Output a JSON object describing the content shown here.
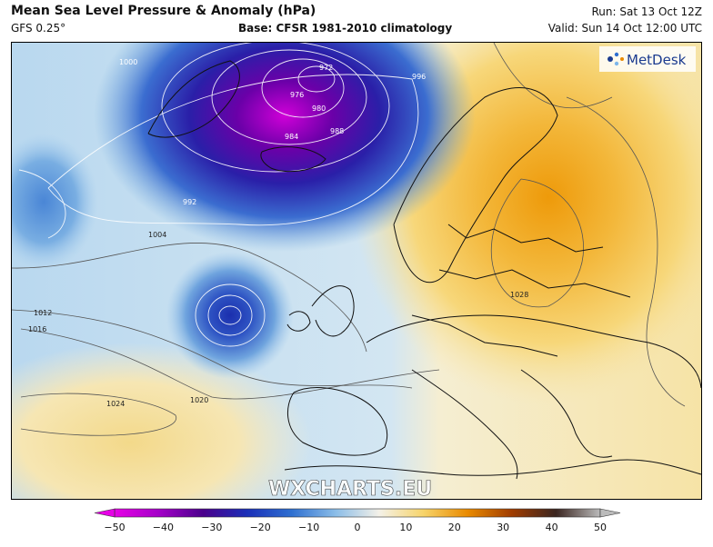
{
  "header": {
    "title": "Mean Sea Level Pressure & Anomaly (hPa)",
    "model": "GFS 0.25°",
    "base": "Base: CFSR 1981-2010 climatology",
    "run": "Run: Sat 13 Oct 12Z",
    "valid": "Valid: Sun 14 Oct 12:00 UTC"
  },
  "branding": {
    "metdesk": "MetDesk",
    "watermark": "WXCHARTS.EU"
  },
  "isobar_labels": [
    "972",
    "976",
    "980",
    "984",
    "988",
    "992",
    "996",
    "1000",
    "1004",
    "1012",
    "1016",
    "1020",
    "1024",
    "1028"
  ],
  "colorbar": {
    "ticks": [
      "−50",
      "−40",
      "−30",
      "−20",
      "−10",
      "0",
      "10",
      "20",
      "30",
      "40",
      "50"
    ],
    "colors": [
      "#e600e6",
      "#a400c8",
      "#4a008c",
      "#1a2fb8",
      "#2e6fd0",
      "#8bbde8",
      "#f4f1e8",
      "#f7d46a",
      "#e98a00",
      "#a03c00",
      "#3a2520",
      "#bbbbbb"
    ]
  }
}
